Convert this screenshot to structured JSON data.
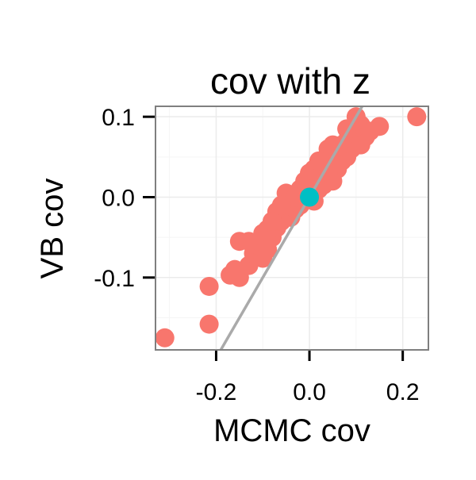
{
  "chart_data": {
    "type": "scatter",
    "title": "cov with z",
    "xlabel": "MCMC cov",
    "ylabel": "VB cov",
    "xlim": [
      -0.33,
      0.255
    ],
    "ylim": [
      -0.19,
      0.113
    ],
    "x_ticks": [
      -0.2,
      0.0,
      0.2
    ],
    "x_tick_labels": [
      "-0.2",
      "0.0",
      "0.2"
    ],
    "y_ticks": [
      -0.1,
      0.0,
      0.1
    ],
    "y_tick_labels": [
      "-0.1",
      "0.0",
      "0.1"
    ],
    "grid": true,
    "legend": "none",
    "reference_line": {
      "slope": 1,
      "intercept": 0,
      "color": "#aaaaaa"
    },
    "colors": {
      "points": "#f8766d",
      "highlight": "#00bfc4",
      "panel_background": "#ffffff",
      "panel_border": "#7f7f7f",
      "grid_major": "#ebebeb",
      "grid_minor": "#f5f5f5"
    },
    "series": [
      {
        "values": [
          {
            "x": -0.31,
            "y": -0.175
          },
          {
            "x": -0.215,
            "y": -0.158
          },
          {
            "x": -0.215,
            "y": -0.111
          },
          {
            "x": -0.17,
            "y": -0.097
          },
          {
            "x": -0.15,
            "y": -0.1
          },
          {
            "x": -0.16,
            "y": -0.09
          },
          {
            "x": -0.13,
            "y": -0.085
          },
          {
            "x": -0.12,
            "y": -0.07
          },
          {
            "x": -0.1,
            "y": -0.076
          },
          {
            "x": -0.1,
            "y": -0.045
          },
          {
            "x": -0.15,
            "y": -0.055
          },
          {
            "x": -0.09,
            "y": -0.04
          },
          {
            "x": -0.08,
            "y": -0.05
          },
          {
            "x": -0.07,
            "y": -0.038
          },
          {
            "x": -0.07,
            "y": -0.018
          },
          {
            "x": -0.06,
            "y": -0.03
          },
          {
            "x": -0.05,
            "y": -0.02
          },
          {
            "x": -0.04,
            "y": -0.025
          },
          {
            "x": -0.03,
            "y": -0.015
          },
          {
            "x": -0.05,
            "y": 0.005
          },
          {
            "x": -0.02,
            "y": 0.01
          },
          {
            "x": -0.01,
            "y": 0.02
          },
          {
            "x": 0.0,
            "y": 0.03
          },
          {
            "x": 0.01,
            "y": 0.035
          },
          {
            "x": 0.02,
            "y": 0.025
          },
          {
            "x": 0.03,
            "y": 0.04
          },
          {
            "x": 0.02,
            "y": 0.01
          },
          {
            "x": 0.01,
            "y": -0.005
          },
          {
            "x": -0.02,
            "y": -0.01
          },
          {
            "x": 0.04,
            "y": 0.045
          },
          {
            "x": 0.05,
            "y": 0.05
          },
          {
            "x": 0.04,
            "y": 0.06
          },
          {
            "x": 0.06,
            "y": 0.055
          },
          {
            "x": 0.07,
            "y": 0.065
          },
          {
            "x": 0.08,
            "y": 0.07
          },
          {
            "x": 0.09,
            "y": 0.08
          },
          {
            "x": 0.1,
            "y": 0.085
          },
          {
            "x": 0.11,
            "y": 0.09
          },
          {
            "x": 0.09,
            "y": 0.06
          },
          {
            "x": 0.08,
            "y": 0.05
          },
          {
            "x": 0.07,
            "y": 0.045
          },
          {
            "x": 0.06,
            "y": 0.035
          },
          {
            "x": 0.05,
            "y": 0.02
          },
          {
            "x": 0.03,
            "y": 0.015
          },
          {
            "x": 0.15,
            "y": 0.088
          },
          {
            "x": 0.23,
            "y": 0.1
          },
          {
            "x": 0.1,
            "y": 0.1
          },
          {
            "x": 0.12,
            "y": 0.075
          },
          {
            "x": 0.11,
            "y": 0.065
          },
          {
            "x": 0.0,
            "y": 0.01
          },
          {
            "x": -0.03,
            "y": 0.0
          },
          {
            "x": -0.06,
            "y": -0.01
          },
          {
            "x": -0.08,
            "y": -0.03
          },
          {
            "x": -0.11,
            "y": -0.06
          },
          {
            "x": -0.13,
            "y": -0.055
          },
          {
            "x": -0.09,
            "y": -0.065
          },
          {
            "x": 0.02,
            "y": 0.045
          },
          {
            "x": 0.05,
            "y": 0.065
          },
          {
            "x": 0.08,
            "y": 0.085
          },
          {
            "x": 0.13,
            "y": 0.082
          },
          {
            "x": 0.06,
            "y": 0.04
          },
          {
            "x": 0.04,
            "y": 0.03
          }
        ]
      },
      {
        "values": [
          {
            "x": 0.0,
            "y": 0.0
          }
        ]
      }
    ]
  }
}
